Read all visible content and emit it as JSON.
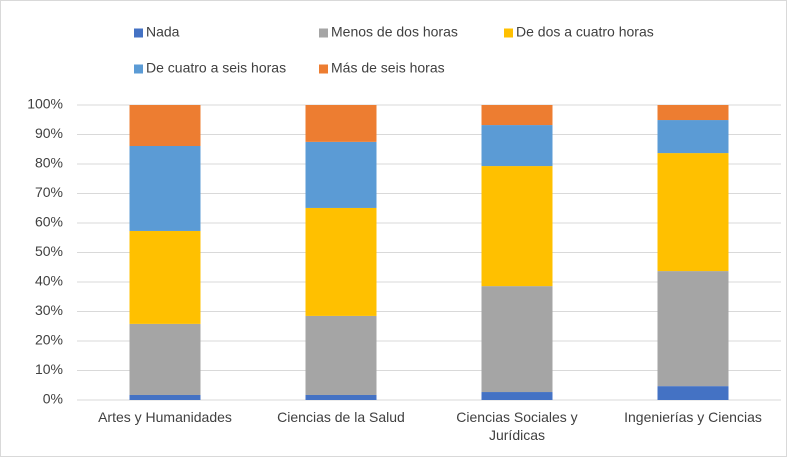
{
  "chart_data": {
    "type": "stacked_bar_100",
    "categories": [
      "Artes y Humanidades",
      "Ciencias de la Salud",
      "Ciencias Sociales y Jurídicas",
      "Ingenierías y Ciencias"
    ],
    "series": [
      {
        "name": "Nada",
        "color": "#4472c4",
        "values": [
          1.7,
          1.7,
          2.7,
          4.7
        ]
      },
      {
        "name": "Menos de dos horas",
        "color": "#a5a5a5",
        "values": [
          24.1,
          26.8,
          35.9,
          39.0
        ]
      },
      {
        "name": "De dos a cuatro horas",
        "color": "#ffc000",
        "values": [
          31.5,
          36.6,
          40.7,
          40.0
        ]
      },
      {
        "name": "De cuatro a seis horas",
        "color": "#5b9bd5",
        "values": [
          28.8,
          22.4,
          13.9,
          11.2
        ]
      },
      {
        "name": "Más de seis horas",
        "color": "#ed7d31",
        "values": [
          13.9,
          12.5,
          6.8,
          5.1
        ]
      }
    ],
    "ylim": [
      0,
      100
    ],
    "yticks": [
      {
        "value": 0,
        "label": "0%"
      },
      {
        "value": 10,
        "label": "10%"
      },
      {
        "value": 20,
        "label": "20%"
      },
      {
        "value": 30,
        "label": "30%"
      },
      {
        "value": 40,
        "label": "40%"
      },
      {
        "value": 50,
        "label": "50%"
      },
      {
        "value": 60,
        "label": "60%"
      },
      {
        "value": 70,
        "label": "70%"
      },
      {
        "value": 80,
        "label": "80%"
      },
      {
        "value": 90,
        "label": "90%"
      },
      {
        "value": 100,
        "label": "100%"
      }
    ],
    "grid": true,
    "legend": "top"
  }
}
